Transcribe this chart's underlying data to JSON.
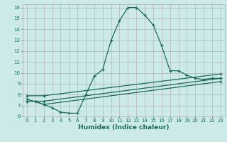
{
  "xlabel": "Humidex (Indice chaleur)",
  "bg_color": "#cceae7",
  "grid_color": "#aaaaaa",
  "line_color": "#1a6b5a",
  "xlim": [
    -0.5,
    23.5
  ],
  "ylim": [
    6,
    16.3
  ],
  "yticks": [
    6,
    7,
    8,
    9,
    10,
    11,
    12,
    13,
    14,
    15,
    16
  ],
  "xticks": [
    0,
    1,
    2,
    3,
    4,
    5,
    6,
    7,
    8,
    9,
    10,
    11,
    12,
    13,
    14,
    15,
    16,
    17,
    18,
    19,
    20,
    21,
    22,
    23
  ],
  "line1_x": [
    0,
    1,
    2,
    3,
    4,
    5,
    6,
    7,
    8,
    9,
    10,
    11,
    12,
    13,
    14,
    15,
    16,
    17,
    18,
    19,
    20,
    21,
    22,
    23
  ],
  "line1_y": [
    7.4,
    7.4,
    7.1,
    6.8,
    6.4,
    6.3,
    6.3,
    8.0,
    9.7,
    10.3,
    13.0,
    14.8,
    16.0,
    16.0,
    15.3,
    14.4,
    12.5,
    10.2,
    10.2,
    9.8,
    9.5,
    9.4,
    9.5,
    9.5
  ],
  "line2_x": [
    0,
    2,
    23
  ],
  "line2_y": [
    7.4,
    7.4,
    9.5
  ],
  "line3_x": [
    0,
    2,
    23
  ],
  "line3_y": [
    7.6,
    7.1,
    9.2
  ],
  "line4_x": [
    0,
    2,
    23
  ],
  "line4_y": [
    7.9,
    7.9,
    9.9
  ]
}
